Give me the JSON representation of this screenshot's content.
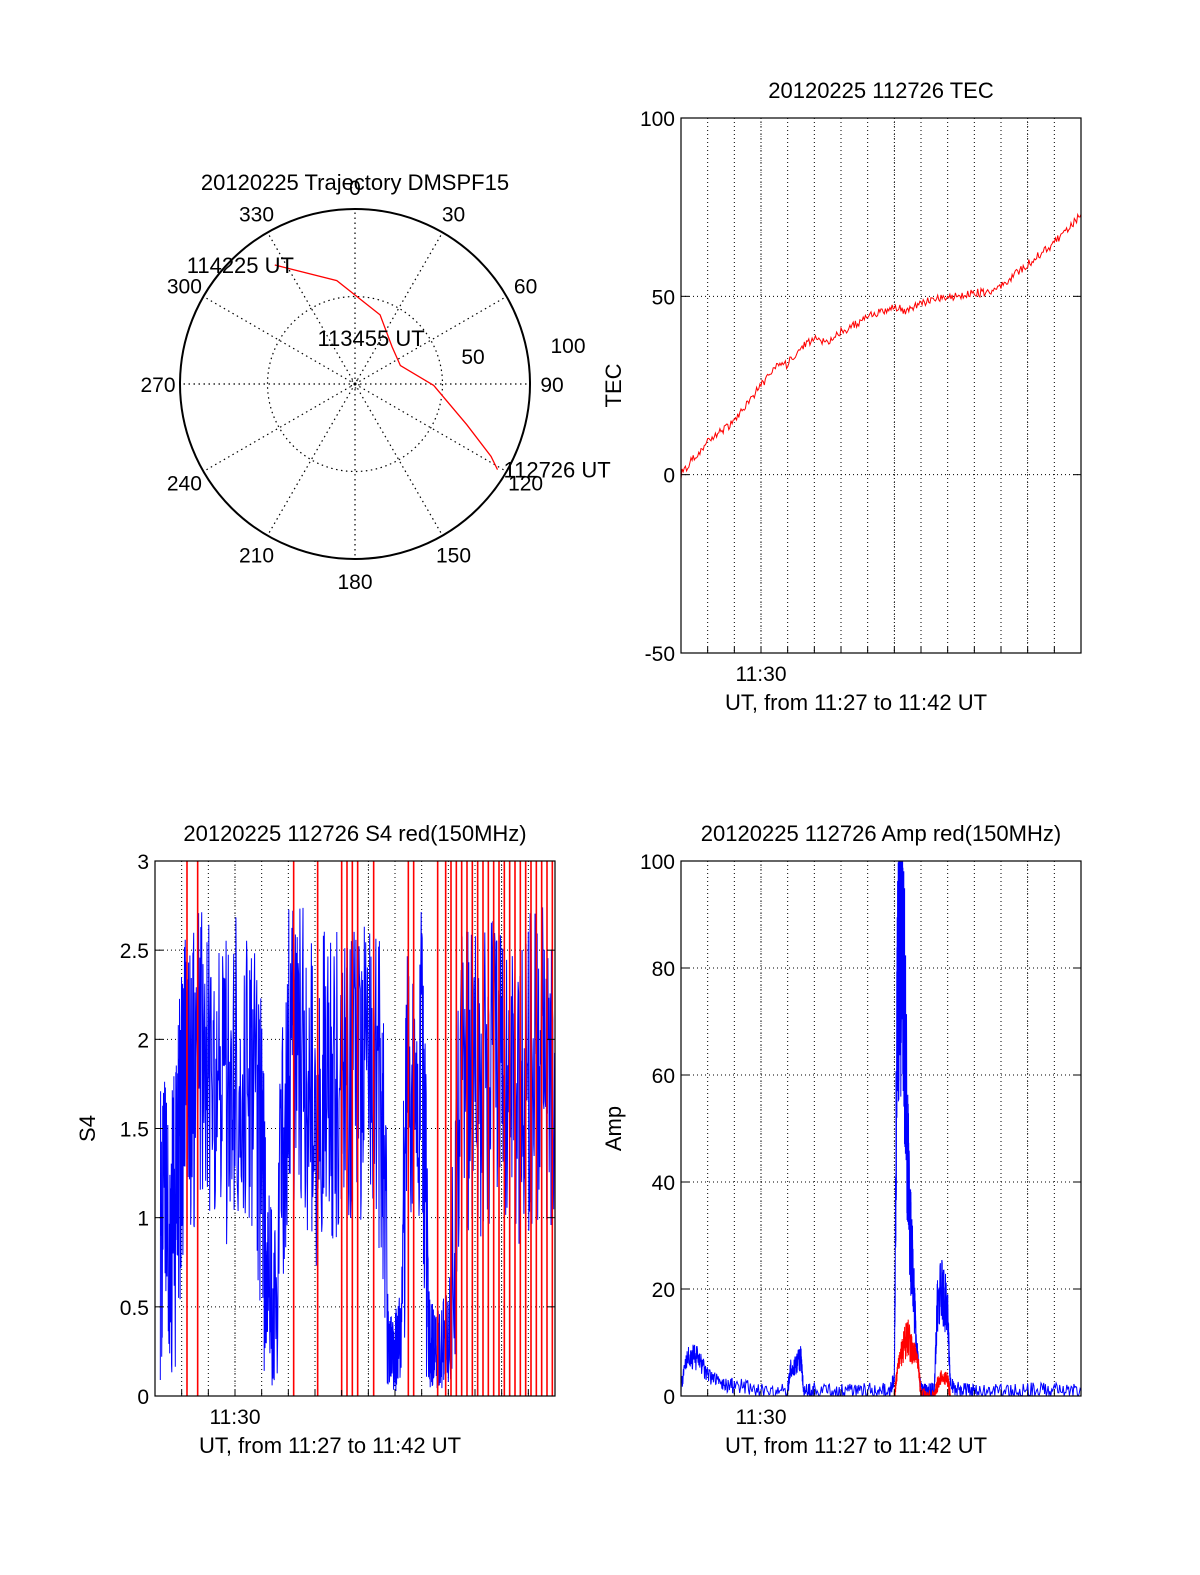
{
  "chart_data": [
    {
      "id": "trajectory",
      "type": "polar",
      "title": "20120225 Trajectory DMSPF15",
      "azimuth_labels": [
        "0",
        "30",
        "60",
        "90",
        "120",
        "150",
        "180",
        "210",
        "240",
        "270",
        "300",
        "330"
      ],
      "radial_labels": [
        "50",
        "100"
      ],
      "rlim": [
        0,
        100
      ],
      "grid": true,
      "colors": {
        "track": "#ff0000",
        "grid": "#000000"
      },
      "track": {
        "points": [
          [
            326,
            82
          ],
          [
            350,
            60
          ],
          [
            20,
            42
          ],
          [
            45,
            30
          ],
          [
            68,
            28
          ],
          [
            91,
            45
          ],
          [
            110,
            68
          ],
          [
            118,
            88
          ],
          [
            121,
            95
          ]
        ],
        "labels": [
          {
            "text": "114225 UT",
            "az": 326,
            "el": 82
          },
          {
            "text": "113455 UT",
            "az": 60,
            "el": 30
          },
          {
            "text": "112726 UT",
            "az": 121,
            "el": 95
          }
        ]
      }
    },
    {
      "id": "tec",
      "type": "line",
      "title": "20120225 112726 TEC",
      "xlabel": "UT, from 11:27 to 11:42 UT",
      "ylabel": "TEC",
      "xlim": [
        "11:27",
        "11:42"
      ],
      "ylim": [
        -50,
        100
      ],
      "yticks": [
        "-50",
        "0",
        "50",
        "100"
      ],
      "xtick_label": "11:30",
      "grid": true,
      "series": [
        {
          "color": "#ff0000",
          "x": [
            0.0,
            0.5,
            1.0,
            1.5,
            2.0,
            2.5,
            3.0,
            3.5,
            4.0,
            4.5,
            5.0,
            5.5,
            6.0,
            6.5,
            7.0,
            7.5,
            8.0,
            8.5,
            9.0,
            9.5,
            10.0,
            10.5,
            11.0,
            11.5,
            12.0,
            12.5,
            13.0,
            13.5,
            14.0,
            14.5,
            15.0
          ],
          "y": [
            0,
            5,
            9,
            12,
            15,
            20,
            25,
            30,
            31,
            36,
            38,
            37,
            40,
            42,
            44,
            46,
            47,
            46,
            48,
            49,
            50,
            50,
            51,
            51,
            53,
            56,
            59,
            62,
            65,
            69,
            73
          ]
        }
      ]
    },
    {
      "id": "s4",
      "type": "line",
      "title": "20120225 112726 S4 red(150MHz)",
      "xlabel": "UT, from 11:27 to 11:42 UT",
      "ylabel": "S4",
      "xlim": [
        "11:27",
        "11:42"
      ],
      "ylim": [
        0,
        3
      ],
      "yticks": [
        "0",
        "0.5",
        "1",
        "1.5",
        "2",
        "2.5",
        "3"
      ],
      "xtick_label": "11:30",
      "grid": true,
      "series": [
        {
          "color": "#0000ff",
          "x": [
            0.2,
            0.5,
            0.8,
            1.0,
            1.2,
            1.5,
            2.0,
            2.5,
            3.0,
            3.5,
            4.0,
            4.2,
            4.5,
            5.0,
            5.5,
            6.0,
            6.5,
            7.0,
            7.5,
            8.0,
            8.5,
            8.8,
            9.0,
            9.2,
            9.5,
            10.0,
            10.3,
            10.5,
            10.8,
            11.0,
            11.5,
            12.0,
            12.5,
            13.0,
            13.5,
            14.0,
            14.5,
            15.0
          ],
          "y": [
            0.9,
            1.0,
            1.0,
            1.6,
            1.7,
            1.8,
            1.9,
            1.7,
            1.8,
            1.9,
            1.3,
            0.7,
            0.5,
            2.0,
            1.9,
            1.6,
            1.8,
            1.7,
            1.9,
            1.8,
            1.7,
            0.25,
            0.25,
            0.3,
            1.8,
            1.9,
            0.3,
            0.25,
            0.3,
            0.3,
            1.8,
            1.7,
            1.8,
            1.9,
            1.7,
            1.8,
            1.9,
            1.7
          ]
        },
        {
          "color": "#ff0000",
          "spikes": [
            1.2,
            1.6,
            5.2,
            6.1,
            7.0,
            7.2,
            7.4,
            7.6,
            8.2,
            9.5,
            9.7,
            10.6,
            10.9,
            11.1,
            11.3,
            11.5,
            11.7,
            11.9,
            12.1,
            12.3,
            12.5,
            12.7,
            12.9,
            13.1,
            13.3,
            13.5,
            13.7,
            13.9,
            14.1,
            14.3,
            14.5,
            14.7,
            14.9
          ]
        }
      ]
    },
    {
      "id": "amp",
      "type": "line",
      "title": "20120225 112726 Amp red(150MHz)",
      "xlabel": "UT, from 11:27 to 11:42 UT",
      "ylabel": "Amp",
      "xlim": [
        "11:27",
        "11:42"
      ],
      "ylim": [
        0,
        100
      ],
      "yticks": [
        "0",
        "20",
        "40",
        "60",
        "80",
        "100"
      ],
      "xtick_label": "11:30",
      "grid": true,
      "series": [
        {
          "color": "#0000ff",
          "x": [
            0.0,
            0.3,
            0.6,
            1.0,
            1.5,
            2.0,
            3.0,
            4.0,
            4.1,
            4.3,
            4.5,
            4.6,
            5.0,
            6.0,
            7.0,
            7.8,
            8.0,
            8.1,
            8.2,
            8.3,
            8.4,
            8.5,
            8.6,
            8.7,
            8.8,
            9.0,
            9.3,
            9.5,
            9.6,
            9.8,
            10.0,
            10.1,
            10.5,
            11.0,
            12.0,
            13.0,
            14.0,
            15.0
          ],
          "y": [
            2,
            8,
            7,
            4,
            2,
            2,
            1,
            1,
            5,
            6,
            7,
            1,
            1,
            1,
            1,
            1,
            3,
            70,
            88,
            80,
            70,
            45,
            30,
            22,
            12,
            1,
            1,
            1,
            16,
            20,
            15,
            2,
            1,
            1,
            1,
            1,
            1,
            1
          ]
        },
        {
          "color": "#ff0000",
          "x": [
            8.0,
            8.1,
            8.3,
            8.5,
            8.7,
            8.9,
            9.0,
            9.5,
            9.6,
            9.8,
            10.0,
            10.1
          ],
          "y": [
            0,
            4,
            9,
            11,
            8,
            6,
            0,
            0,
            2,
            4,
            3,
            0
          ]
        }
      ]
    }
  ]
}
